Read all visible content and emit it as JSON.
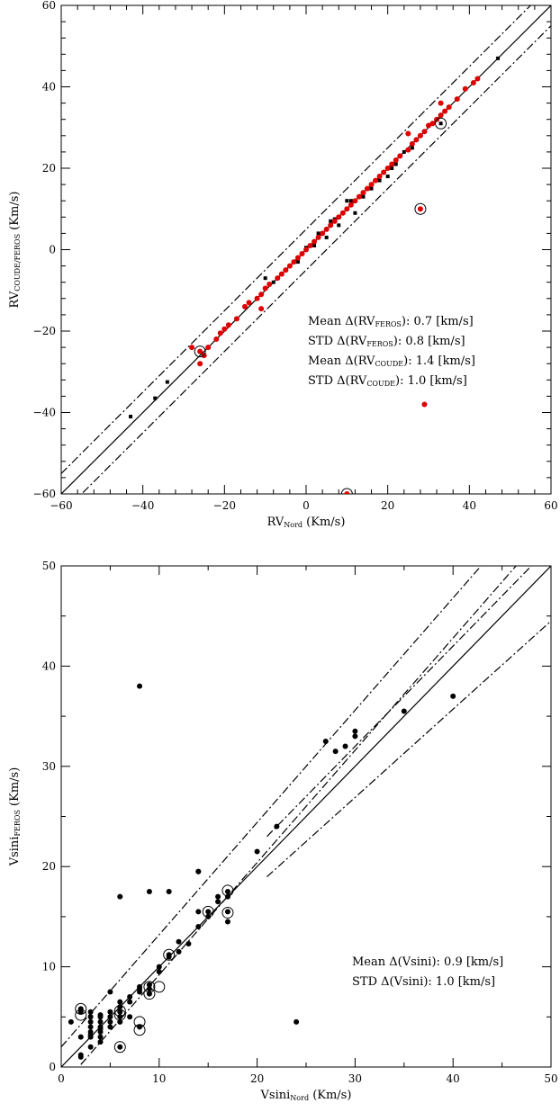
{
  "chart_data": [
    {
      "type": "scatter",
      "xlabel": "RV",
      "xlabel_sub": "Nord",
      "xlabel_unit": " (Km/s)",
      "ylabel": "RV",
      "ylabel_sub": "COUDE/FEROS",
      "ylabel_unit": " (Km/s)",
      "xlim": [
        -60,
        60
      ],
      "ylim": [
        -60,
        60
      ],
      "xticks": [
        -60,
        -40,
        -20,
        0,
        20,
        40,
        60
      ],
      "yticks": [
        -60,
        -40,
        -20,
        0,
        20,
        40,
        60
      ],
      "lines": [
        {
          "style": "solid",
          "offset": 0
        },
        {
          "style": "dashdot",
          "offset": 5
        },
        {
          "style": "dashdot",
          "offset": -5
        }
      ],
      "annotations": [
        {
          "pre": "Mean  Δ(RV",
          "sub": "FEROS",
          "post": "): 0.7 [km/s]"
        },
        {
          "pre": "STD   Δ(RV",
          "sub": "FEROS",
          "post": "): 0.8 [km/s]"
        },
        {
          "pre": "Mean  Δ(RV",
          "sub": "COUDE",
          "post": "): 1.4 [km/s]"
        },
        {
          "pre": "STD   Δ(RV",
          "sub": "COUDE",
          "post": "): 1.0 [km/s]"
        }
      ],
      "series": [
        {
          "marker": "square",
          "color": "#000000",
          "x": [
            -43,
            -37,
            -34,
            -10,
            -8,
            -5,
            -2,
            -1,
            0,
            2,
            3,
            5,
            6,
            7,
            8,
            9,
            10,
            11,
            12,
            14,
            16,
            17,
            18,
            19,
            20,
            21,
            22,
            24,
            26,
            27,
            31,
            33,
            47
          ],
          "y": [
            -41,
            -36.5,
            -32.5,
            -7,
            -8,
            -5,
            -3,
            -1,
            0.5,
            1,
            4,
            3,
            7,
            7.5,
            6,
            9,
            12,
            12,
            9,
            13,
            15,
            17,
            17,
            19,
            18,
            20,
            21,
            24,
            25,
            27,
            31,
            31,
            47
          ]
        },
        {
          "marker": "circle",
          "color": "#e00000",
          "x": [
            -28,
            -26,
            -25,
            -24,
            -22,
            -21,
            -20,
            -19,
            -17,
            -15,
            -14,
            -12,
            -11,
            -10,
            -9,
            -7,
            -6,
            -5,
            -4,
            -3,
            -2,
            -1,
            0,
            1,
            2,
            3,
            4,
            5,
            6,
            7,
            8,
            9,
            10,
            11,
            12,
            13,
            14,
            15,
            16,
            17,
            18,
            19,
            20,
            21,
            22,
            23,
            25,
            26,
            27,
            28,
            29,
            30,
            31,
            32,
            33,
            34,
            35,
            37,
            39,
            41,
            42,
            -26,
            -11,
            25,
            33,
            28,
            29,
            10
          ],
          "y": [
            -24,
            -25,
            -26,
            -24,
            -22,
            -20.5,
            -19.5,
            -18.5,
            -17,
            -14,
            -13,
            -12,
            -11,
            -9.5,
            -8.5,
            -7,
            -6,
            -5,
            -4,
            -3,
            -2,
            -1,
            0,
            1,
            2,
            3,
            4,
            5,
            6,
            7,
            8,
            9,
            10,
            11,
            12,
            13,
            14,
            15,
            16,
            17,
            18,
            19,
            20,
            21,
            22,
            23,
            24.5,
            26,
            27,
            28,
            29,
            30.5,
            31,
            32,
            33,
            34,
            35,
            37,
            39.5,
            41,
            42,
            -28,
            -14.5,
            28.5,
            36,
            10,
            -38,
            -60
          ]
        }
      ],
      "outlined": [
        {
          "x": -26,
          "y": -25
        },
        {
          "x": 28,
          "y": 10
        },
        {
          "x": 10,
          "y": -60
        },
        {
          "x": 33,
          "y": 31
        }
      ]
    },
    {
      "type": "scatter",
      "xlabel": "Vsini",
      "xlabel_sub": "Nord",
      "xlabel_unit": " (Km/s)",
      "ylabel": "Vsini",
      "ylabel_sub": "FEROS",
      "ylabel_unit": " (Km/s)",
      "xlim": [
        0,
        50
      ],
      "ylim": [
        0,
        50
      ],
      "xticks": [
        0,
        10,
        20,
        30,
        40,
        50
      ],
      "yticks": [
        0,
        10,
        20,
        30,
        40,
        50
      ],
      "lines": [
        {
          "style": "solid",
          "slope": 1,
          "offset": 0,
          "from": 0
        },
        {
          "style": "dashdot",
          "slope": 1.12,
          "offset": 2,
          "from": 0
        },
        {
          "style": "dashdot",
          "slope": 1.12,
          "offset": -2,
          "from": 2
        },
        {
          "style": "dashdot",
          "slope": 1.0,
          "offset": 2,
          "from": 21
        },
        {
          "style": "dashdot",
          "slope": 0.88,
          "offset": 0.5,
          "from": 21
        }
      ],
      "annotations": [
        {
          "pre": "Mean  Δ(Vsini): 0.9 [km/s]",
          "sub": "",
          "post": ""
        },
        {
          "pre": "STD   Δ(Vsini): 1.0 [km/s]",
          "sub": "",
          "post": ""
        }
      ],
      "series": [
        {
          "marker": "circle",
          "color": "#000000",
          "x": [
            1,
            2,
            2,
            2,
            2,
            2,
            3,
            3,
            3,
            3,
            3,
            3,
            3,
            3,
            4,
            4,
            4,
            4,
            4,
            4,
            4,
            4,
            5,
            5,
            5,
            5,
            5,
            6,
            6,
            6,
            6,
            6,
            6,
            7,
            7,
            7,
            8,
            8,
            8,
            8,
            9,
            9,
            9,
            10,
            10,
            11,
            11,
            12,
            12,
            13,
            14,
            14,
            14,
            15,
            15,
            16,
            16,
            17,
            17,
            17,
            17,
            20,
            22,
            27,
            28,
            29,
            30,
            30,
            35,
            40,
            6,
            8,
            9,
            11,
            14,
            24
          ],
          "y": [
            4.5,
            1,
            1.2,
            3,
            5.5,
            5.8,
            2,
            3,
            3.5,
            4,
            4.5,
            5,
            5.5,
            3.2,
            2.5,
            3,
            3.5,
            4,
            4.5,
            5,
            5.2,
            3.8,
            4,
            4.5,
            5,
            5.5,
            7.5,
            4.5,
            5,
            5.5,
            6,
            6.5,
            2,
            5,
            6.5,
            7,
            7.5,
            7.8,
            8,
            4,
            7.3,
            7.8,
            8.2,
            9.5,
            10,
            11.2,
            11,
            11.5,
            12.5,
            12.3,
            14,
            15.5,
            19.5,
            15,
            15.5,
            16.5,
            17,
            14.5,
            15.5,
            17,
            17.5,
            21.5,
            24,
            32.5,
            31.5,
            32,
            33,
            33.5,
            35.5,
            37,
            17,
            38,
            17.5,
            17.5,
            19.5,
            4.5
          ]
        }
      ],
      "outlined": [
        {
          "x": 2,
          "y": 5.2
        },
        {
          "x": 2,
          "y": 5.8
        },
        {
          "x": 6,
          "y": 5.2
        },
        {
          "x": 6,
          "y": 5.6
        },
        {
          "x": 6,
          "y": 2
        },
        {
          "x": 8,
          "y": 4.5
        },
        {
          "x": 8,
          "y": 3.7
        },
        {
          "x": 9,
          "y": 8
        },
        {
          "x": 9,
          "y": 7.3
        },
        {
          "x": 10,
          "y": 8
        },
        {
          "x": 11,
          "y": 11.2
        },
        {
          "x": 15,
          "y": 15.5
        },
        {
          "x": 17,
          "y": 17.6
        },
        {
          "x": 17,
          "y": 15.4
        }
      ]
    }
  ]
}
